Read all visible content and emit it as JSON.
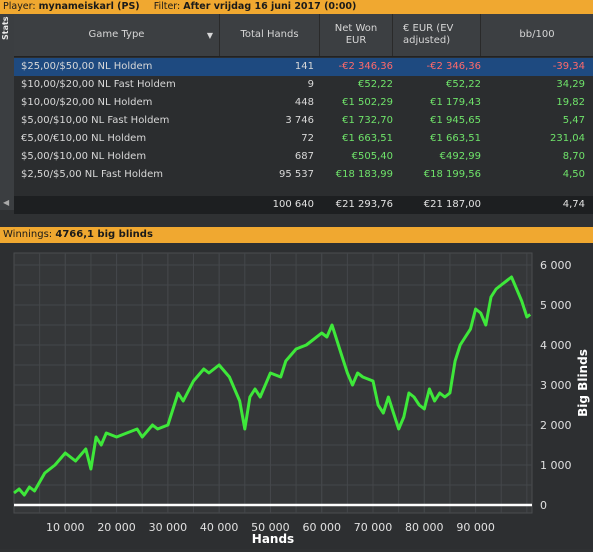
{
  "filter_bar": {
    "player_label": "Player:",
    "player_value": "mynameiskarl (PS)",
    "filter_label": "Filter:",
    "filter_value": "After vrijdag 16 juni 2017 (0:00)"
  },
  "side_tab": {
    "label": "Stats"
  },
  "table": {
    "headers": {
      "game_type": "Game Type",
      "total_hands": "Total Hands",
      "net_won_line1": "Net Won",
      "net_won_line2": "EUR",
      "ev_line1": "€ EUR (EV",
      "ev_line2": "adjusted)",
      "bb100": "bb/100"
    },
    "rows": [
      {
        "game_type": "$25,00/$50,00 NL Holdem",
        "hands": "141",
        "net": "-€2 346,36",
        "ev": "-€2 346,36",
        "bb100": "-39,34"
      },
      {
        "game_type": "$10,00/$20,00 NL Fast Holdem",
        "hands": "9",
        "net": "€52,22",
        "ev": "€52,22",
        "bb100": "34,29"
      },
      {
        "game_type": "$10,00/$20,00 NL Holdem",
        "hands": "448",
        "net": "€1 502,29",
        "ev": "€1 179,43",
        "bb100": "19,82"
      },
      {
        "game_type": "$5,00/$10,00 NL Fast Holdem",
        "hands": "3 746",
        "net": "€1 732,70",
        "ev": "€1 945,65",
        "bb100": "5,47"
      },
      {
        "game_type": "€5,00/€10,00 NL Holdem",
        "hands": "72",
        "net": "€1 663,51",
        "ev": "€1 663,51",
        "bb100": "231,04"
      },
      {
        "game_type": "$5,00/$10,00 NL Holdem",
        "hands": "687",
        "net": "€505,40",
        "ev": "€492,99",
        "bb100": "8,70"
      },
      {
        "game_type": "$2,50/$5,00 NL Fast Holdem",
        "hands": "95 537",
        "net": "€18 183,99",
        "ev": "€18 199,56",
        "bb100": "4,50"
      }
    ],
    "totals": {
      "hands": "100 640",
      "net": "€21 293,76",
      "ev": "€21 187,00",
      "bb100": "4,74"
    }
  },
  "summary": {
    "label": "Winnings:",
    "value": "4766,1 big blinds"
  },
  "chart_data": {
    "type": "line",
    "title": "",
    "xlabel": "Hands",
    "ylabel": "Big Blinds",
    "xlim": [
      0,
      101000
    ],
    "ylim": [
      -200,
      6300
    ],
    "x_ticks": [
      10000,
      20000,
      30000,
      40000,
      50000,
      60000,
      70000,
      80000,
      90000
    ],
    "x_tick_labels": [
      "10 000",
      "20 000",
      "30 000",
      "40 000",
      "50 000",
      "60 000",
      "70 000",
      "80 000",
      "90 000"
    ],
    "y_ticks": [
      0,
      1000,
      2000,
      3000,
      4000,
      5000,
      6000
    ],
    "y_tick_labels": [
      "0",
      "1 000",
      "2 000",
      "3 000",
      "4 000",
      "5 000",
      "6 000"
    ],
    "grid": true,
    "colors": {
      "winnings": "#3ee83a",
      "zero_line": "#ffffff"
    },
    "series": [
      {
        "x": [
          0,
          1000,
          2000,
          3000,
          4000,
          6000,
          8000,
          10000,
          12000,
          14000,
          15000,
          16000,
          17000,
          18000,
          20000,
          22000,
          24000,
          25000,
          27000,
          28000,
          30000,
          32000,
          33000,
          35000,
          37000,
          38000,
          40000,
          42000,
          44000,
          45000,
          46000,
          47000,
          48000,
          50000,
          52000,
          53000,
          55000,
          57000,
          58000,
          60000,
          61000,
          62000,
          63000,
          64000,
          65000,
          66000,
          67000,
          68000,
          70000,
          71000,
          72000,
          73000,
          74000,
          75000,
          76000,
          77000,
          78000,
          79000,
          80000,
          81000,
          82000,
          83000,
          84000,
          85000,
          86000,
          87000,
          88000,
          89000,
          90000,
          91000,
          92000,
          93000,
          94000,
          95000,
          96000,
          97000,
          98000,
          99000,
          100000,
          100640
        ],
        "y": [
          300,
          400,
          250,
          450,
          350,
          800,
          1000,
          1300,
          1100,
          1400,
          900,
          1700,
          1500,
          1800,
          1700,
          1800,
          1900,
          1700,
          2000,
          1900,
          2000,
          2800,
          2600,
          3100,
          3400,
          3300,
          3500,
          3200,
          2600,
          1900,
          2700,
          2900,
          2700,
          3300,
          3200,
          3600,
          3900,
          4000,
          4100,
          4300,
          4200,
          4500,
          4100,
          3700,
          3300,
          3000,
          3300,
          3200,
          3100,
          2500,
          2300,
          2700,
          2300,
          1900,
          2200,
          2800,
          2700,
          2500,
          2400,
          2900,
          2600,
          2800,
          2700,
          2800,
          3600,
          4000,
          4200,
          4400,
          4900,
          4800,
          4500,
          5200,
          5400,
          5500,
          5600,
          5700,
          5400,
          5100,
          4700,
          4766
        ]
      }
    ]
  }
}
